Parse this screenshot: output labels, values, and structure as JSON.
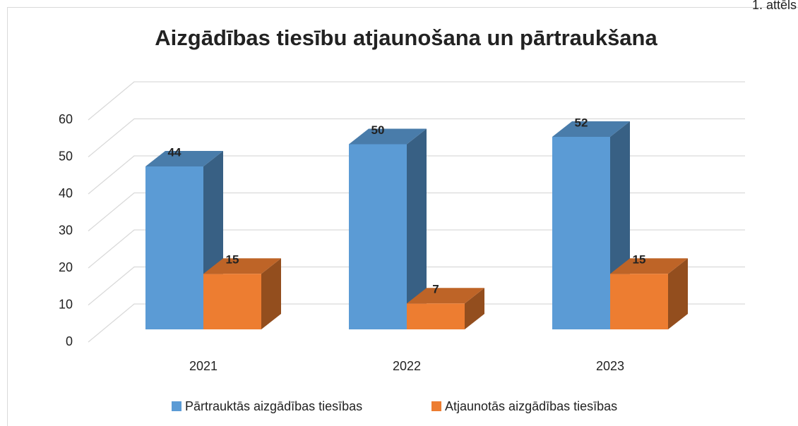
{
  "caption": "1. attēls",
  "chart_data": {
    "type": "bar3d",
    "title": "Aizgādības tiesību atjaunošana un pārtraukšana",
    "categories": [
      "2021",
      "2022",
      "2023"
    ],
    "series": [
      {
        "name": "Pārtrauktās aizgādības tiesības",
        "color": "#5b9bd5",
        "values": [
          44,
          50,
          52
        ]
      },
      {
        "name": "Atjaunotās aizgādības tiesības",
        "color": "#ed7d31",
        "values": [
          15,
          7,
          15
        ]
      }
    ],
    "ylim": [
      0,
      60
    ],
    "yticks": [
      0,
      10,
      20,
      30,
      40,
      50,
      60
    ],
    "grid": true,
    "legend": "bottom"
  }
}
